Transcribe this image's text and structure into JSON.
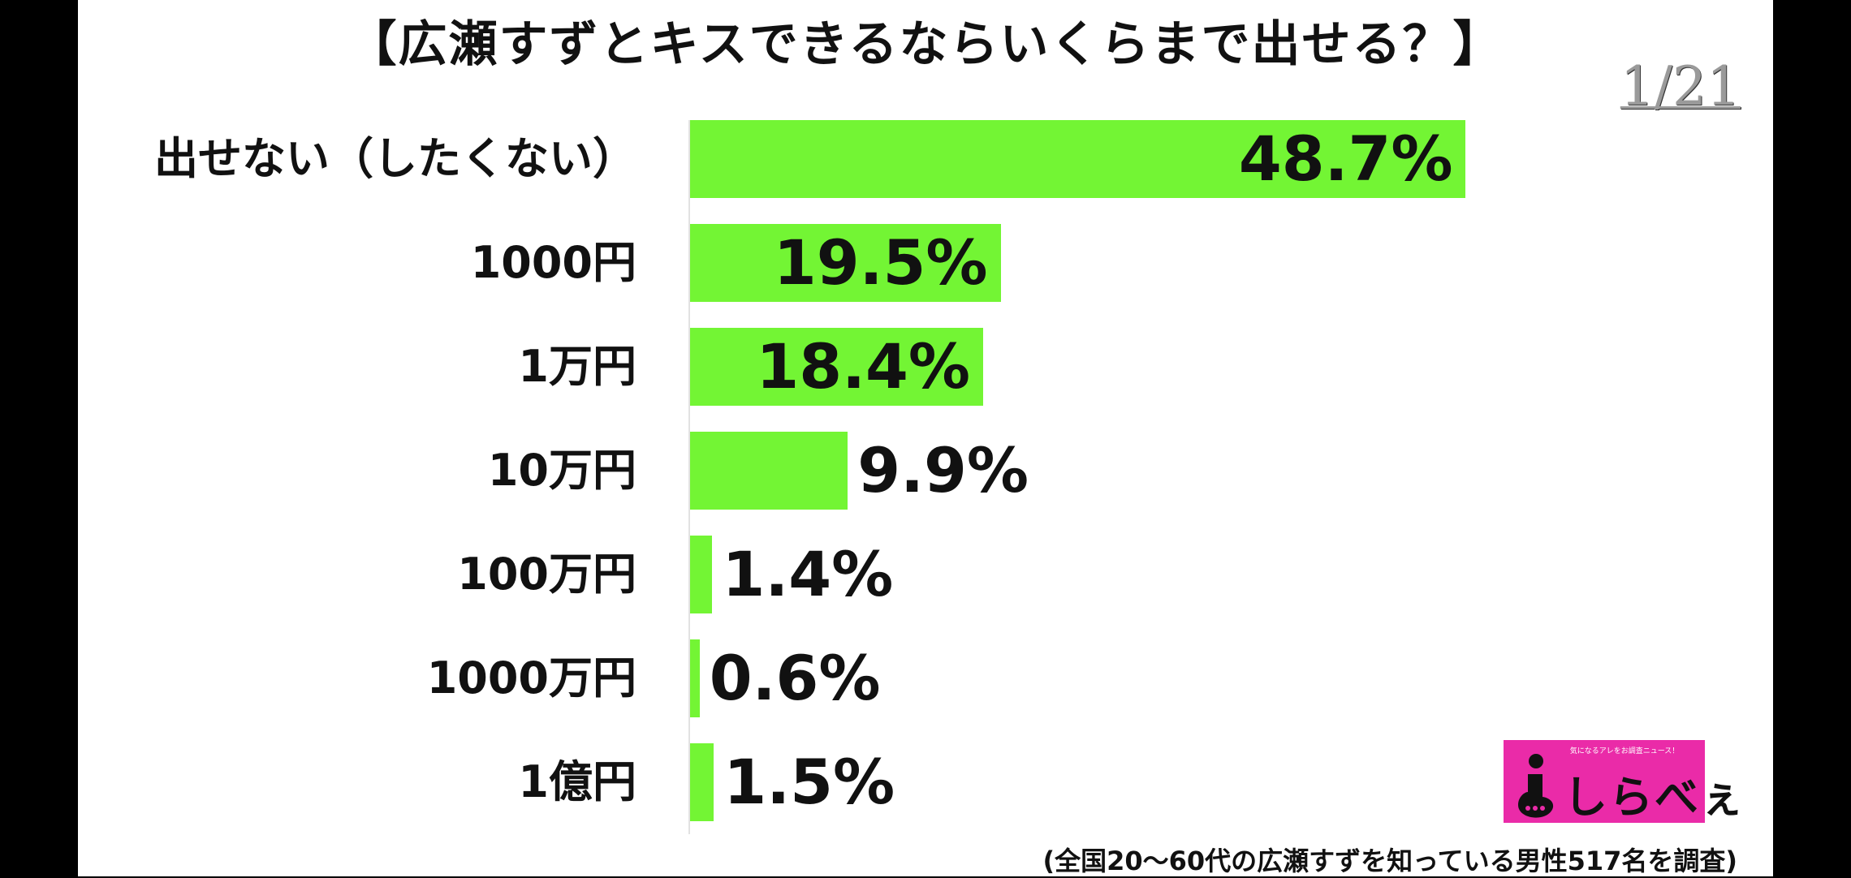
{
  "title": "【広瀬すずとキスできるならいくらまで出せる？】",
  "page_indicator": "1/21",
  "footnote": "(全国20〜60代の広瀬すずを知っている男性517名を調査)",
  "logo": {
    "tagline": "気になるアレをお調査ニュース！",
    "text": "しらべぇ",
    "background": "#ea2ba8"
  },
  "colors": {
    "bar": "#73f534",
    "text": "#111111",
    "background": "#ffffff"
  },
  "chart_data": {
    "type": "bar",
    "orientation": "horizontal",
    "title": "【広瀬すずとキスできるならいくらまで出せる？】",
    "categories": [
      "出せない（したくない）",
      "1000円",
      "1万円",
      "10万円",
      "100万円",
      "1000万円",
      "1億円"
    ],
    "values": [
      48.7,
      19.5,
      18.4,
      9.9,
      1.4,
      0.6,
      1.5
    ],
    "value_labels": [
      "48.7%",
      "19.5%",
      "18.4%",
      "9.9%",
      "1.4%",
      "0.6%",
      "1.5%"
    ],
    "unit": "%",
    "xlim": [
      0,
      100
    ],
    "grid": false,
    "legend": false
  }
}
